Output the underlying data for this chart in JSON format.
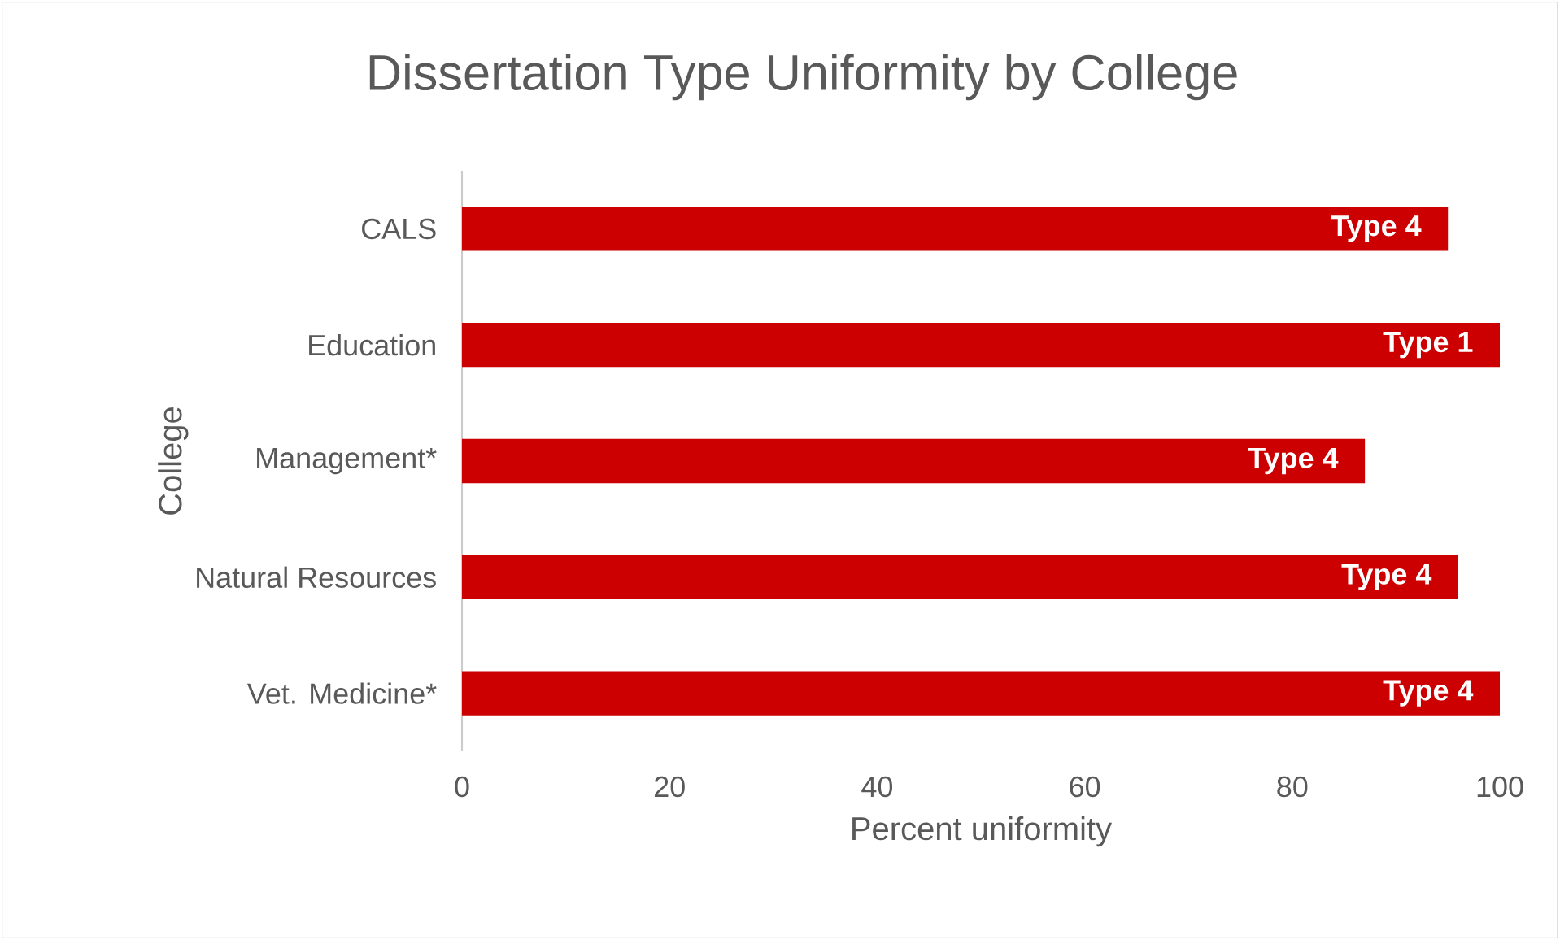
{
  "chart_data": {
    "type": "bar",
    "orientation": "horizontal",
    "title": "Dissertation Type Uniformity by College",
    "xlabel": "Percent uniformity",
    "ylabel": "College",
    "categories": [
      "CALS",
      "Education",
      "Management*",
      "Natural Resources",
      "Vet. Medicine*"
    ],
    "values": [
      95,
      100,
      87,
      96,
      100
    ],
    "value_labels": [
      "Type 4",
      "Type 1",
      "Type 4",
      "Type 4",
      "Type 4"
    ],
    "color": "#cc0000",
    "xlim": [
      0,
      100
    ],
    "xticks": [
      0,
      20,
      40,
      60,
      80,
      100
    ]
  }
}
